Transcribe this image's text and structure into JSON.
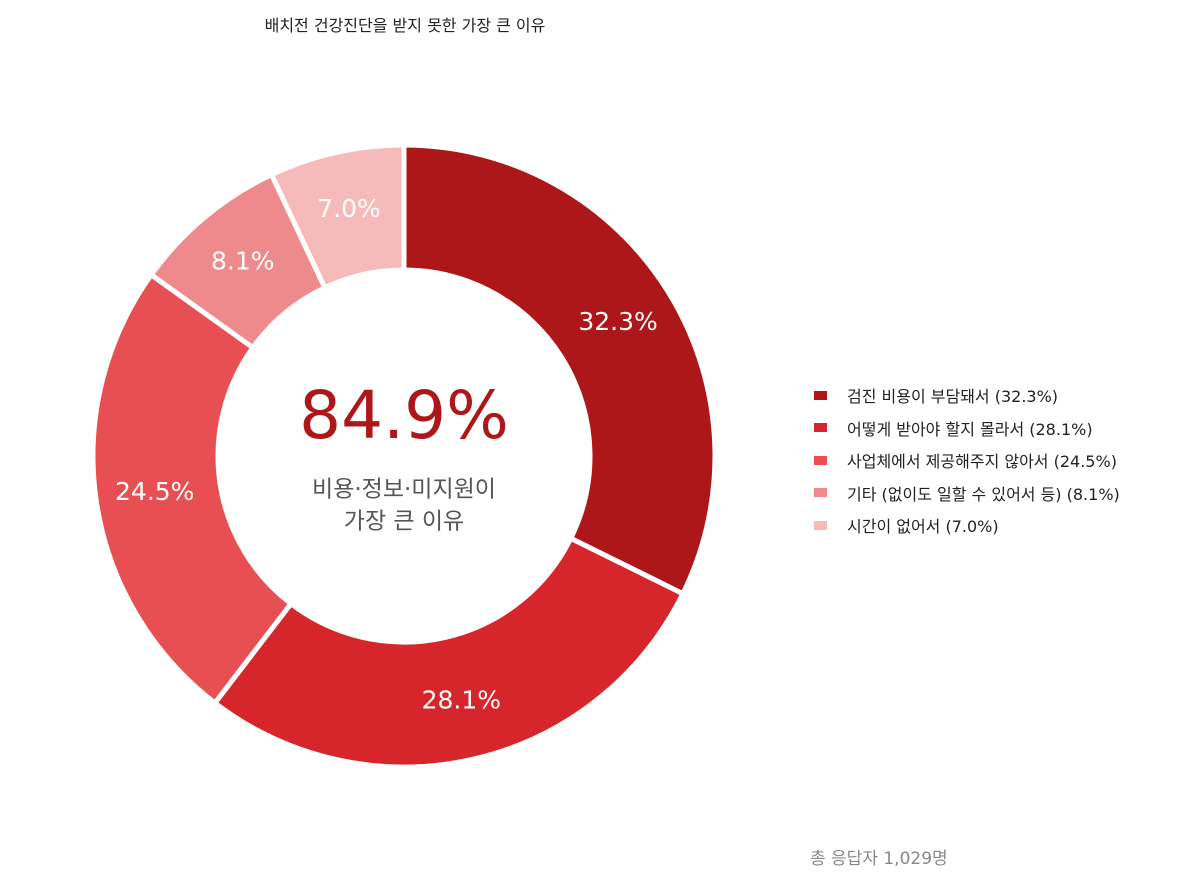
{
  "chart_data": {
    "type": "pie",
    "title": "배치전 건강진단을 받지 못한 가장 큰 이유",
    "categories": [
      "검진 비용이 부담돼서",
      "어떻게 받아야 할지 몰라서",
      "사업체에서 제공해주지 않아서",
      "기타 (없이도 일할 수 있어서 등)",
      "시간이 없어서"
    ],
    "values": [
      32.3,
      28.1,
      24.5,
      8.1,
      7.0
    ],
    "slice_labels": [
      "32.3%",
      "28.1%",
      "24.5%",
      "8.1%",
      "7.0%"
    ],
    "legend_labels": [
      "검진 비용이 부담돼서  (32.3%)",
      "어떻게 받아야 할지 몰라서  (28.1%)",
      "사업체에서 제공해주지 않아서  (24.5%)",
      "기타 (없이도 일할 수 있어서 등)  (8.1%)",
      "시간이 없어서  (7.0%)"
    ],
    "colors": [
      "#AE1719",
      "#D6262B",
      "#E84F52",
      "#EE8A8B",
      "#F6BABB"
    ],
    "legend_position": "right",
    "center": {
      "value": "84.9%",
      "value_color": "#AE1719",
      "line1": "비용·정보·미지원이",
      "line2": "가장 큰 이유"
    }
  },
  "footer": {
    "total": "총 응답자 1,029명"
  }
}
